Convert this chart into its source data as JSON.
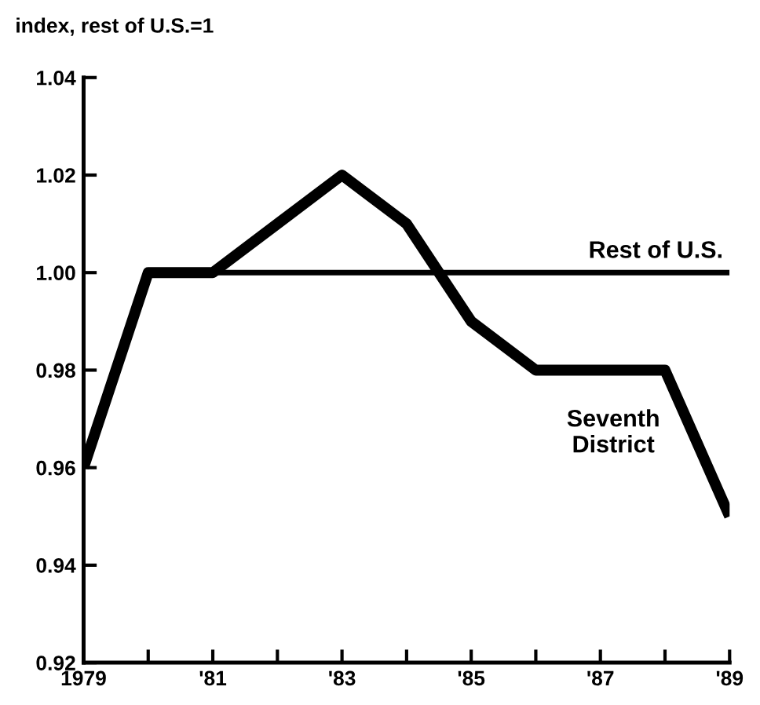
{
  "chart_data": {
    "type": "line",
    "ylabel": "index, rest of U.S.=1",
    "x": [
      1979,
      1980,
      1981,
      1982,
      1983,
      1984,
      1985,
      1986,
      1987,
      1988,
      1989
    ],
    "series": [
      {
        "name": "Rest of U.S.",
        "color": "#000000",
        "values": [
          null,
          1.0,
          1.0,
          1.0,
          1.0,
          1.0,
          1.0,
          1.0,
          1.0,
          1.0,
          1.0
        ]
      },
      {
        "name": "Seventh\nDistrict",
        "color": "#000000",
        "values": [
          0.96,
          1.0,
          1.0,
          1.01,
          1.02,
          1.01,
          0.99,
          0.98,
          0.98,
          0.98,
          0.95
        ]
      }
    ],
    "xlim": [
      1979,
      1989
    ],
    "xticks": [
      {
        "value": 1979,
        "label": "1979"
      },
      {
        "value": 1980,
        "label": null
      },
      {
        "value": 1981,
        "label": "'81"
      },
      {
        "value": 1982,
        "label": null
      },
      {
        "value": 1983,
        "label": "'83"
      },
      {
        "value": 1984,
        "label": null
      },
      {
        "value": 1985,
        "label": "'85"
      },
      {
        "value": 1986,
        "label": null
      },
      {
        "value": 1987,
        "label": "'87"
      },
      {
        "value": 1988,
        "label": null
      },
      {
        "value": 1989,
        "label": "'89"
      }
    ],
    "ylim": [
      0.92,
      1.04
    ],
    "yticks": [
      {
        "value": 0.92,
        "label": "0.92"
      },
      {
        "value": 0.94,
        "label": "0.94"
      },
      {
        "value": 0.96,
        "label": "0.96"
      },
      {
        "value": 0.98,
        "label": "0.98"
      },
      {
        "value": 1.0,
        "label": "1.00"
      },
      {
        "value": 1.02,
        "label": "1.02"
      },
      {
        "value": 1.04,
        "label": "1.04"
      }
    ],
    "grid": false,
    "legend": false,
    "marker": "none",
    "line_style": "solid"
  }
}
